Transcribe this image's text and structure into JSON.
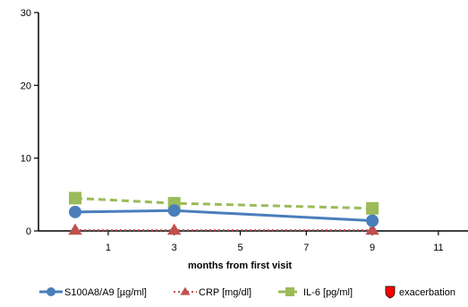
{
  "chart_data": {
    "type": "line",
    "title": "",
    "xlabel": "months from first visit",
    "ylabel": "",
    "xlim": [
      -1,
      12
    ],
    "ylim": [
      0,
      30
    ],
    "x_ticks": [
      1,
      3,
      5,
      7,
      9,
      11
    ],
    "y_ticks": [
      0,
      10,
      20,
      30
    ],
    "grid": false,
    "legend_position": "bottom",
    "series": [
      {
        "name": "S100A8/A9 [µg/ml]",
        "x": [
          0,
          3,
          9
        ],
        "y": [
          2.6,
          2.8,
          1.4
        ],
        "color": "#4a7ebb",
        "marker": "circle",
        "line": "solid"
      },
      {
        "name": "CRP [mg/dl]",
        "x": [
          0,
          3,
          9
        ],
        "y": [
          0.1,
          0.1,
          0.1
        ],
        "color": "#c0504d",
        "marker": "triangle",
        "line": "dotted"
      },
      {
        "name": "IL-6 [pg/ml]",
        "x": [
          0,
          3,
          9
        ],
        "y": [
          4.5,
          3.8,
          3.1
        ],
        "color": "#9bbb59",
        "marker": "square",
        "line": "dashed"
      },
      {
        "name": "exacerbation",
        "x": [],
        "y": [],
        "color": "#ff0000",
        "marker": "shield",
        "line": "none"
      }
    ]
  }
}
